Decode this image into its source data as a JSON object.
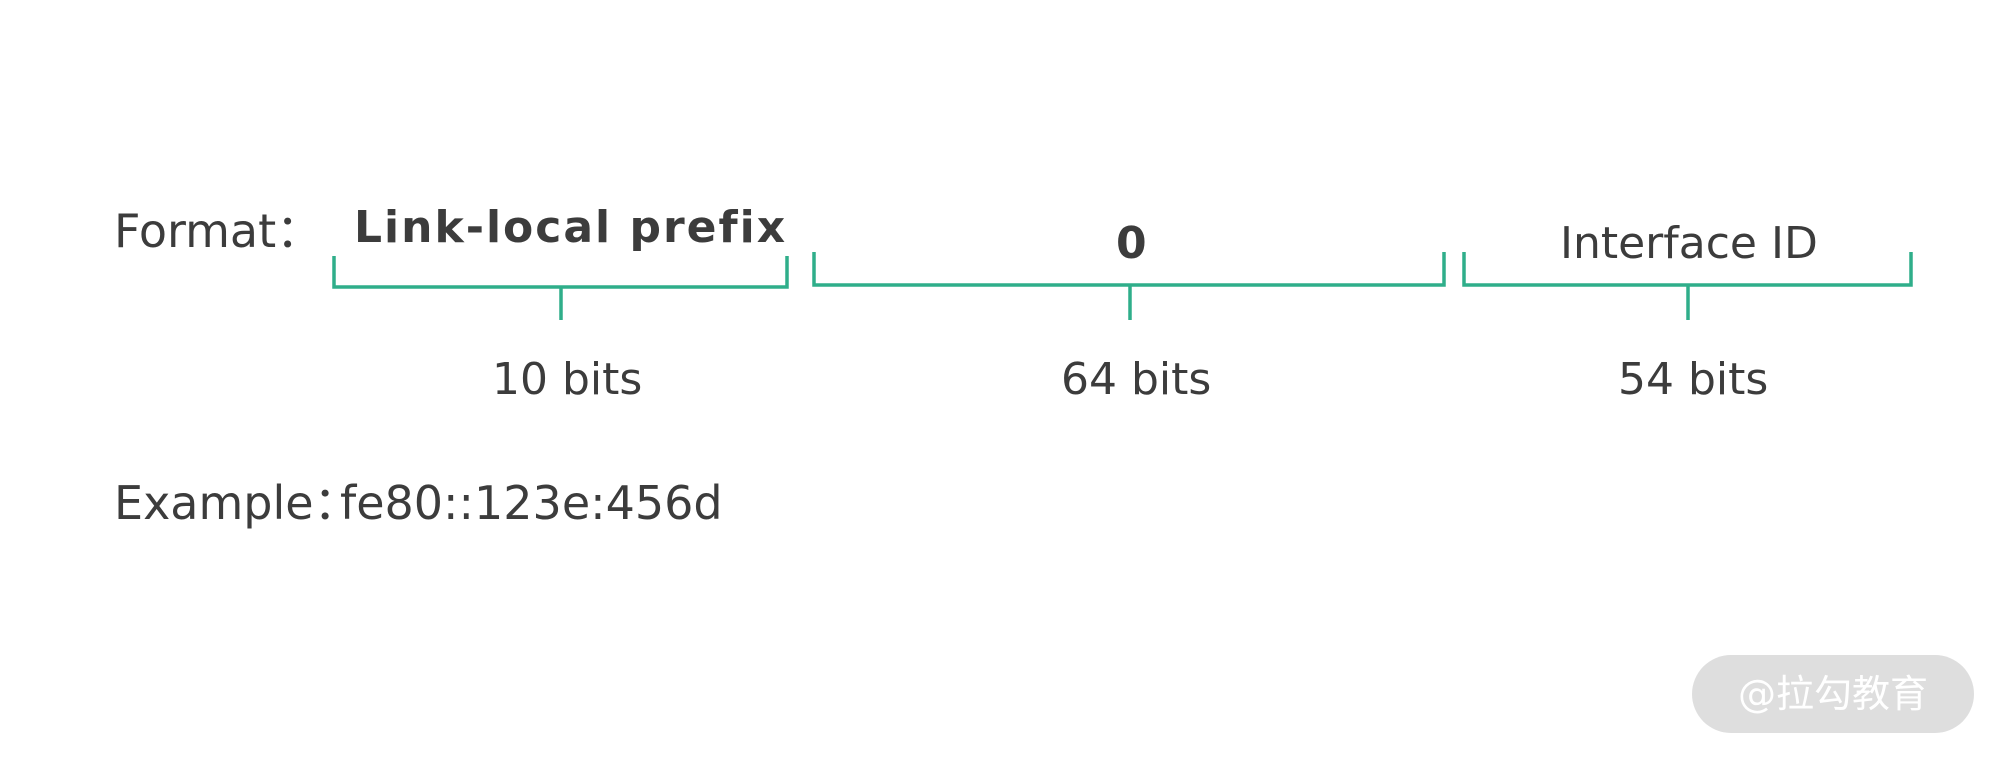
{
  "format": {
    "label": "Format："
  },
  "fields": [
    {
      "name": "Link-local prefix",
      "bits": "10 bits"
    },
    {
      "name": "0",
      "bits": "64 bits"
    },
    {
      "name": "Interface ID",
      "bits": "54 bits"
    }
  ],
  "example": {
    "label": "Example：",
    "value": "fe80::123e:456d"
  },
  "watermark": {
    "text": "@拉勾教育"
  },
  "colors": {
    "bracket": "#2fae8a",
    "text": "#3c3c3c",
    "watermark_bg": "#dedede"
  }
}
